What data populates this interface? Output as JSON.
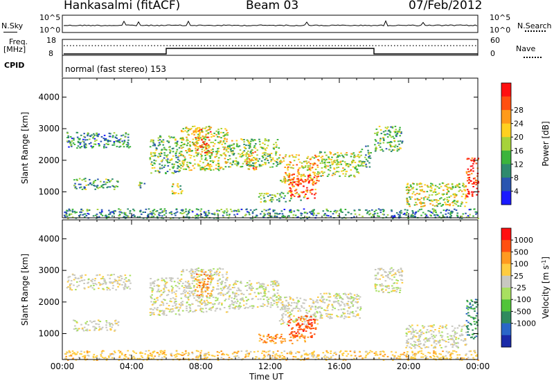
{
  "header": {
    "station": "Hankasalmi (fitACF)",
    "beam": "Beam 03",
    "date": "07/Feb/2012"
  },
  "strip_labels": {
    "nsky": "N.Sky",
    "nsearch": "N.Search",
    "freq_line1": "Freq.",
    "freq_line2": "[MHz]",
    "nave": "Nave",
    "cpid": "CPID",
    "cpid_value": "normal (fast stereo) 153",
    "nsky_ticks": [
      "10^5",
      "10^0"
    ],
    "nsearch_ticks": [
      "10^5",
      "10^0"
    ],
    "freq_ticks": [
      "18",
      "8"
    ],
    "nave_ticks": [
      "60",
      "0"
    ]
  },
  "xaxis": {
    "label": "Time UT",
    "ticks": [
      "00:00",
      "04:00",
      "08:00",
      "12:00",
      "16:00",
      "20:00",
      "00:00"
    ]
  },
  "chart_data": [
    {
      "type": "heatmap",
      "name": "power",
      "ylabel": "Slant Range [km]",
      "yticks": [
        1000,
        2000,
        3000,
        4000
      ],
      "ylim": [
        180,
        4600
      ],
      "xlim": [
        0,
        24
      ],
      "colorbar": {
        "label": "Power [dB]",
        "ticks": [
          "4",
          "8",
          "12",
          "16",
          "20",
          "24",
          "28"
        ],
        "colors": [
          "#1a1aff",
          "#2a55b0",
          "#2f8a6e",
          "#3cb43c",
          "#a6d23a",
          "#ffd020",
          "#ff9a1a",
          "#ff5010",
          "#ff1010"
        ]
      },
      "echoes": [
        {
          "t0": 0.2,
          "t1": 3.9,
          "r0": 2400,
          "r1": 2900,
          "level": 0.3
        },
        {
          "t0": 0.6,
          "t1": 3.2,
          "r0": 1100,
          "r1": 1450,
          "level": 0.35
        },
        {
          "t0": 4.2,
          "t1": 4.9,
          "r0": 1150,
          "r1": 1350,
          "level": 0.4
        },
        {
          "t0": 5.0,
          "t1": 6.8,
          "r0": 1600,
          "r1": 2800,
          "level": 0.4
        },
        {
          "t0": 6.3,
          "t1": 6.9,
          "r0": 950,
          "r1": 1300,
          "level": 0.5
        },
        {
          "t0": 6.8,
          "t1": 9.5,
          "r0": 1700,
          "r1": 3100,
          "level": 0.55
        },
        {
          "t0": 7.6,
          "t1": 8.6,
          "r0": 2200,
          "r1": 3000,
          "level": 0.75
        },
        {
          "t0": 9.5,
          "t1": 12.5,
          "r0": 1800,
          "r1": 2700,
          "level": 0.45
        },
        {
          "t0": 10.6,
          "t1": 11.2,
          "r0": 1700,
          "r1": 2300,
          "level": 0.7
        },
        {
          "t0": 11.3,
          "t1": 14.0,
          "r0": 700,
          "r1": 1000,
          "level": 0.4
        },
        {
          "t0": 12.5,
          "t1": 14.8,
          "r0": 1300,
          "r1": 2200,
          "level": 0.65
        },
        {
          "t0": 13.0,
          "t1": 14.6,
          "r0": 800,
          "r1": 1600,
          "level": 0.85
        },
        {
          "t0": 14.8,
          "t1": 17.2,
          "r0": 1500,
          "r1": 2300,
          "level": 0.5
        },
        {
          "t0": 17.2,
          "t1": 17.8,
          "r0": 1800,
          "r1": 2500,
          "level": 0.35
        },
        {
          "t0": 18.0,
          "t1": 19.6,
          "r0": 2300,
          "r1": 3100,
          "level": 0.4
        },
        {
          "t0": 19.8,
          "t1": 23.3,
          "r0": 550,
          "r1": 1300,
          "level": 0.55
        },
        {
          "t0": 23.3,
          "t1": 24.0,
          "r0": 850,
          "r1": 2100,
          "level": 0.9
        },
        {
          "t0": 0.0,
          "t1": 24.0,
          "r0": 180,
          "r1": 480,
          "level": 0.3
        }
      ]
    },
    {
      "type": "heatmap",
      "name": "velocity",
      "ylabel": "Slant Range [km]",
      "yticks": [
        1000,
        2000,
        3000,
        4000
      ],
      "ylim": [
        180,
        4600
      ],
      "xlim": [
        0,
        24
      ],
      "colorbar": {
        "label": "Velocity [m s",
        "label_sup": "-1",
        "label_end": "]",
        "ticks": [
          "1000",
          "500",
          "100",
          "25",
          "-25",
          "-100",
          "-500",
          "-1000"
        ],
        "colors": [
          "#1a2aa8",
          "#2a66c8",
          "#2f8a5e",
          "#52c43a",
          "#a8e060",
          "#c8c8c0",
          "#ffcc40",
          "#ff9a20",
          "#ff5010",
          "#ff1010"
        ]
      },
      "echoes": [
        {
          "t0": 0.2,
          "t1": 3.9,
          "r0": 2400,
          "r1": 2900,
          "vcat": 5
        },
        {
          "t0": 0.6,
          "t1": 3.2,
          "r0": 1100,
          "r1": 1450,
          "vcat": 5
        },
        {
          "t0": 5.0,
          "t1": 6.8,
          "r0": 1600,
          "r1": 2800,
          "vcat": 5
        },
        {
          "t0": 6.8,
          "t1": 9.5,
          "r0": 1700,
          "r1": 3100,
          "vcat": 5
        },
        {
          "t0": 7.6,
          "t1": 8.6,
          "r0": 2200,
          "r1": 3000,
          "vcat": 7
        },
        {
          "t0": 9.5,
          "t1": 12.5,
          "r0": 1800,
          "r1": 2700,
          "vcat": 5
        },
        {
          "t0": 11.3,
          "t1": 14.0,
          "r0": 700,
          "r1": 1000,
          "vcat": 7
        },
        {
          "t0": 12.5,
          "t1": 14.8,
          "r0": 1300,
          "r1": 2200,
          "vcat": 5
        },
        {
          "t0": 13.0,
          "t1": 14.6,
          "r0": 900,
          "r1": 1600,
          "vcat": 8
        },
        {
          "t0": 14.8,
          "t1": 17.2,
          "r0": 1500,
          "r1": 2300,
          "vcat": 5
        },
        {
          "t0": 18.0,
          "t1": 19.6,
          "r0": 2300,
          "r1": 3100,
          "vcat": 5
        },
        {
          "t0": 19.8,
          "t1": 23.3,
          "r0": 550,
          "r1": 1300,
          "vcat": 5
        },
        {
          "t0": 23.3,
          "t1": 24.0,
          "r0": 850,
          "r1": 2100,
          "vcat": 2
        },
        {
          "t0": 0.0,
          "t1": 24.0,
          "r0": 180,
          "r1": 480,
          "vcat": 6
        }
      ]
    }
  ]
}
